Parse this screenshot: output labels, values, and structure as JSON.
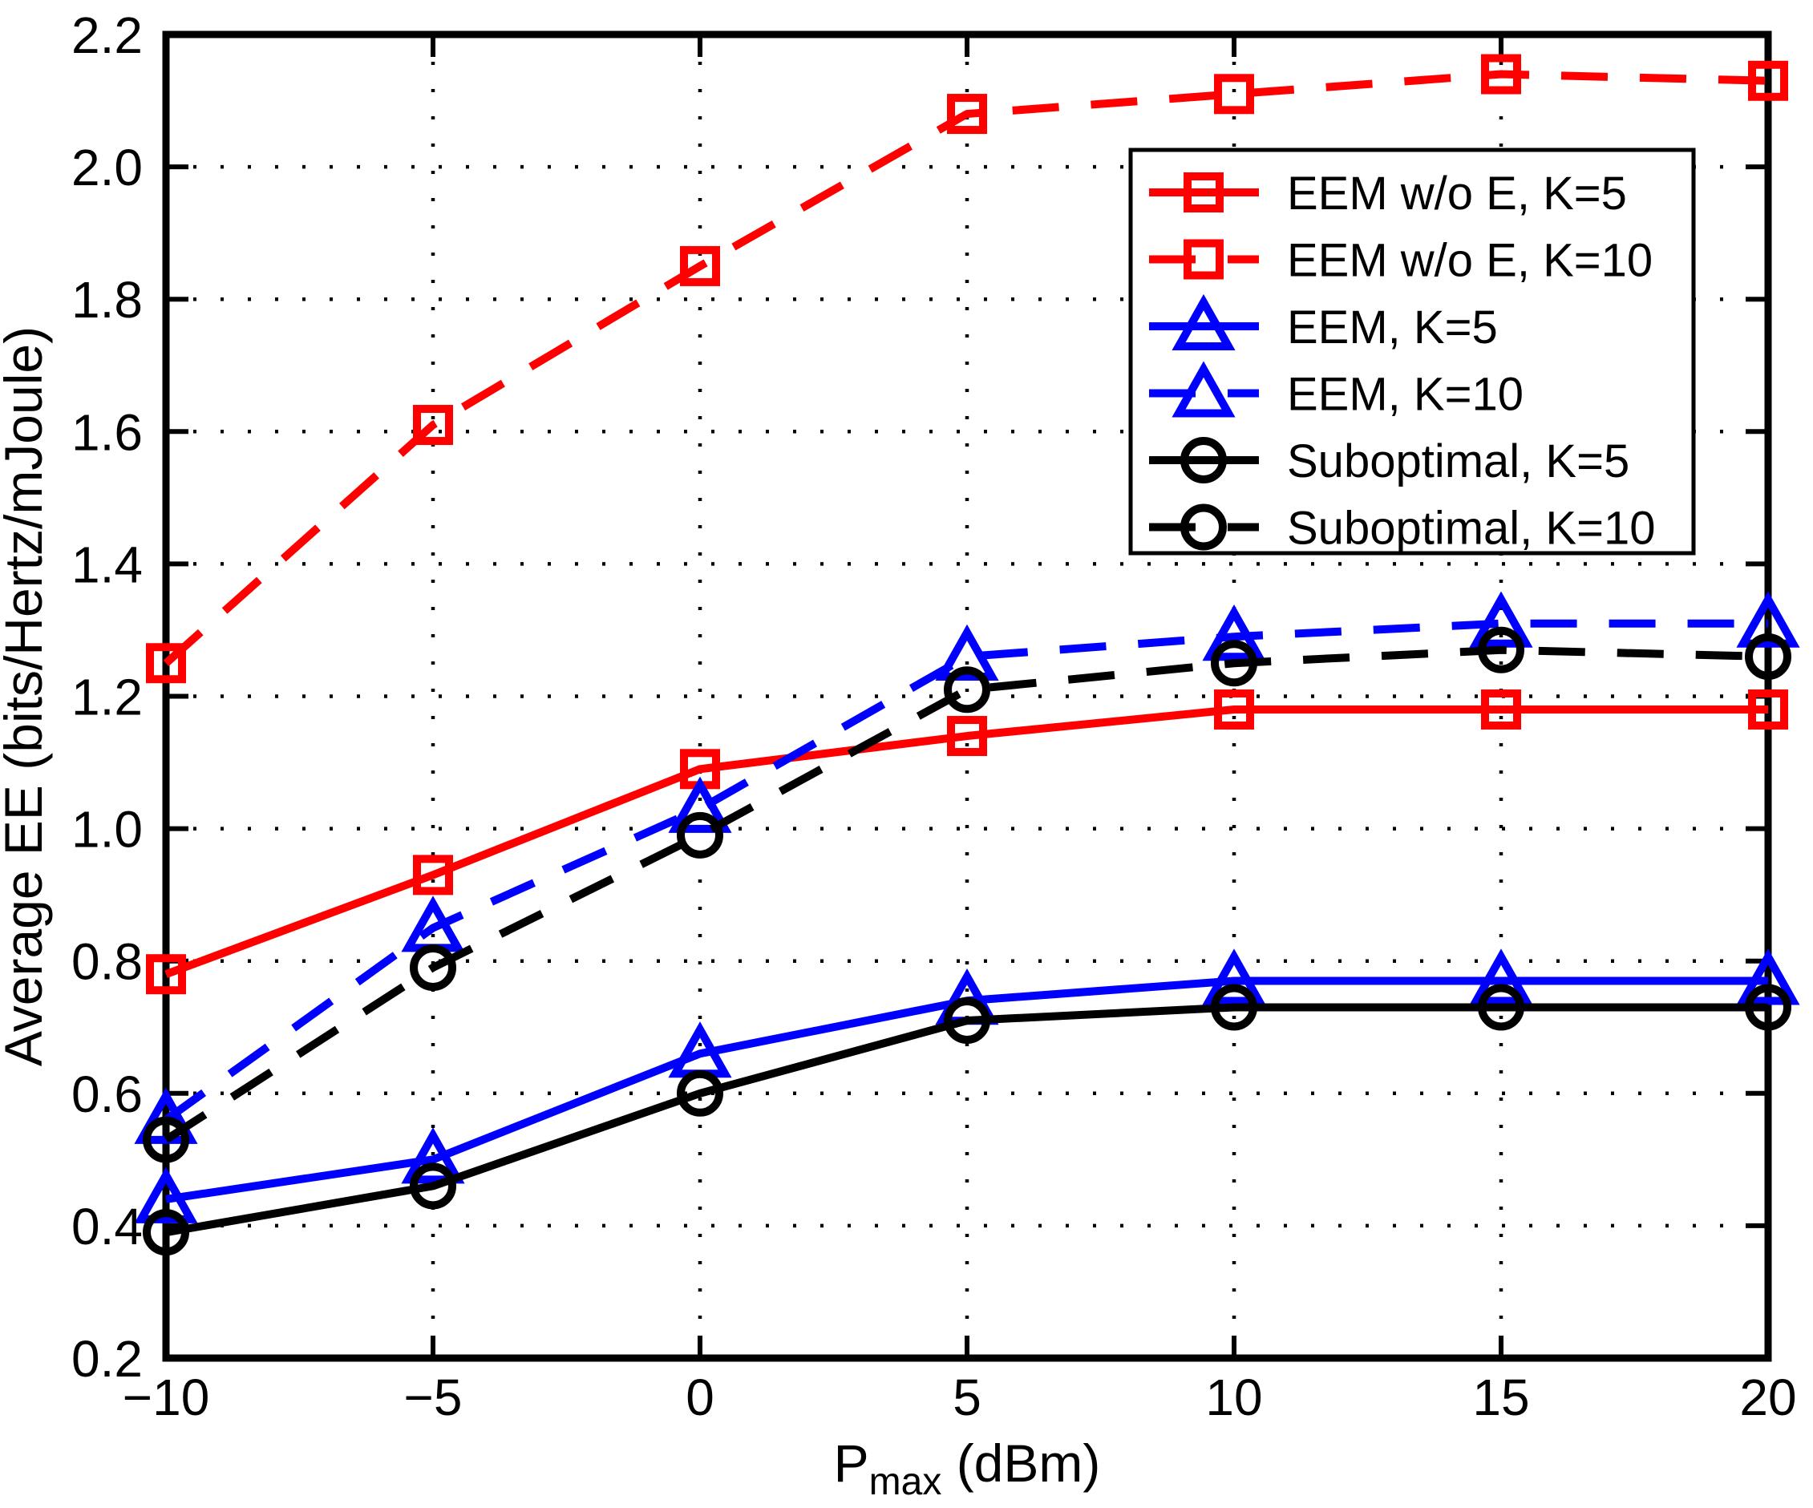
{
  "figure": {
    "background": "#ffffff",
    "axis_color": "#000000",
    "grid_style": "dotted"
  },
  "chart_data": {
    "type": "line",
    "title": "",
    "xlabel": {
      "main": "P",
      "sub": "max",
      "unit": " (dBm)"
    },
    "ylabel": "Average EE (bits/Hertz/mJoule)",
    "xlim": [
      -10,
      20
    ],
    "ylim": [
      0.2,
      2.2
    ],
    "x": [
      -10,
      -5,
      0,
      5,
      10,
      15,
      20
    ],
    "x_tick_labels": [
      "−10",
      "−5",
      "0",
      "5",
      "10",
      "15",
      "20"
    ],
    "y_ticks": [
      0.2,
      0.4,
      0.6,
      0.8,
      1.0,
      1.2,
      1.4,
      1.6,
      1.8,
      2.0,
      2.2
    ],
    "y_tick_labels": [
      "0.2",
      "0.4",
      "0.6",
      "0.8",
      "1.0",
      "1.2",
      "1.4",
      "1.6",
      "1.8",
      "2.0",
      "2.2"
    ],
    "grid": "on",
    "legend_position": "top-right",
    "series": [
      {
        "name": "EEM w/o E, K=5",
        "color": "#ff0000",
        "style": "solid",
        "marker": "square",
        "values": [
          0.78,
          0.93,
          1.09,
          1.14,
          1.18,
          1.18,
          1.18
        ]
      },
      {
        "name": "EEM w/o E, K=10",
        "color": "#ff0000",
        "style": "dashed",
        "marker": "square",
        "values": [
          1.25,
          1.61,
          1.85,
          2.08,
          2.11,
          2.14,
          2.13
        ]
      },
      {
        "name": "EEM, K=5",
        "color": "#0000ff",
        "style": "solid",
        "marker": "triangle",
        "values": [
          0.44,
          0.5,
          0.66,
          0.74,
          0.77,
          0.77,
          0.77
        ]
      },
      {
        "name": "EEM, K=10",
        "color": "#0000ff",
        "style": "dashed",
        "marker": "triangle",
        "values": [
          0.56,
          0.85,
          1.03,
          1.26,
          1.29,
          1.31,
          1.31
        ]
      },
      {
        "name": "Suboptimal, K=5",
        "color": "#000000",
        "style": "solid",
        "marker": "circle",
        "values": [
          0.39,
          0.46,
          0.6,
          0.71,
          0.73,
          0.73,
          0.73
        ]
      },
      {
        "name": "Suboptimal, K=10",
        "color": "#000000",
        "style": "dashed",
        "marker": "circle",
        "values": [
          0.53,
          0.79,
          0.99,
          1.21,
          1.25,
          1.27,
          1.26
        ]
      }
    ]
  }
}
